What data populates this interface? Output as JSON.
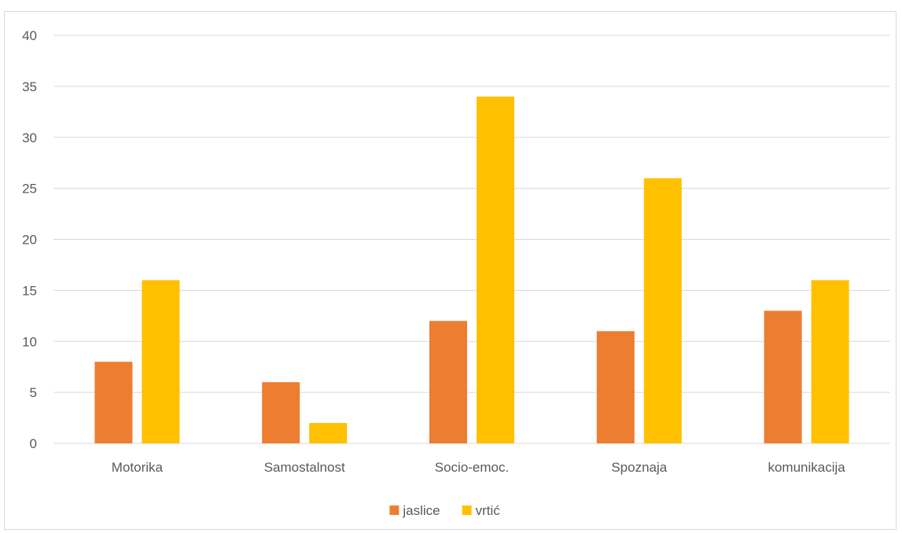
{
  "chart_data": {
    "type": "bar",
    "title": "",
    "xlabel": "",
    "ylabel": "",
    "categories": [
      "Motorika",
      "Samostalnost",
      "Socio-emoc.",
      "Spoznaja",
      "komunikacija"
    ],
    "series": [
      {
        "name": "jaslice",
        "color": "#ed7d31",
        "values": [
          8,
          6,
          12,
          11,
          13
        ]
      },
      {
        "name": "vrtić",
        "color": "#ffc000",
        "values": [
          16,
          2,
          34,
          26,
          16
        ]
      }
    ],
    "ylim": [
      0,
      40
    ],
    "yticks": [
      "0",
      "5",
      "10",
      "15",
      "20",
      "25",
      "30",
      "35",
      "40"
    ],
    "grid": true,
    "legend_position": "bottom"
  }
}
